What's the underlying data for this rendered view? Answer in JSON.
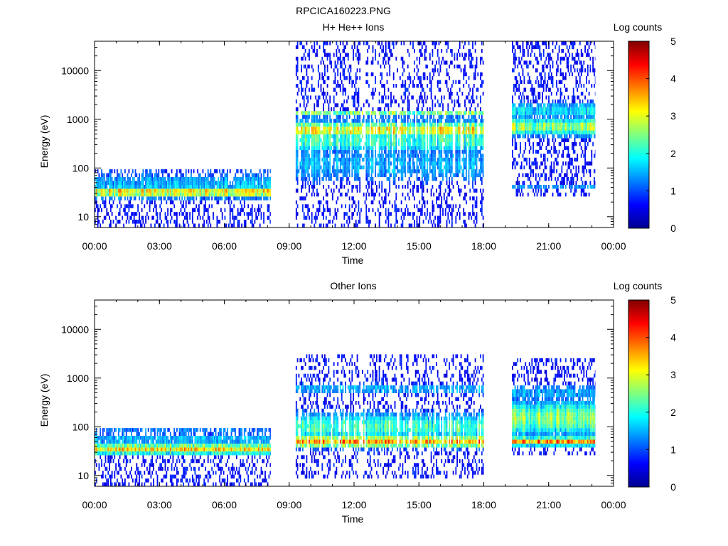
{
  "figure": {
    "filename": "RPCICA160223.PNG"
  },
  "chart_data": [
    {
      "type": "heatmap",
      "title": "H+ He++ Ions",
      "xlabel": "Time",
      "ylabel": "Energy (eV)",
      "x_ticks": [
        "00:00",
        "03:00",
        "06:00",
        "09:00",
        "12:00",
        "15:00",
        "18:00",
        "21:00",
        "00:00"
      ],
      "x_range_hours": [
        0,
        24
      ],
      "y_scale": "log",
      "y_ticks": [
        10,
        100,
        1000,
        10000
      ],
      "y_tick_labels": [
        "10",
        "100",
        "1000",
        "10000"
      ],
      "y_range": [
        6,
        40000
      ],
      "colorbar": {
        "label": "Log counts",
        "ticks": [
          "0",
          "1",
          "2",
          "3",
          "4",
          "5"
        ],
        "range": [
          0,
          5
        ],
        "colormap": "jet"
      },
      "data_intervals": [
        {
          "start_h": 0.0,
          "end_h": 8.15,
          "e_low": 6,
          "e_high": 95,
          "bands": [
            {
              "e_center": 32,
              "e_width_log": 0.09,
              "level": 3.3
            },
            {
              "e_center": 52,
              "e_width_log": 0.12,
              "level": 1.5
            },
            {
              "e_center": 75,
              "e_width_log": 0.1,
              "level": 1.0
            }
          ]
        },
        {
          "start_h": 9.3,
          "end_h": 18.0,
          "e_low": 6,
          "e_high": 40000,
          "bands": [
            {
              "e_center": 600,
              "e_width_log": 0.14,
              "level": 3.2
            },
            {
              "e_center": 1300,
              "e_width_log": 0.05,
              "level": 2.6
            },
            {
              "e_center": 350,
              "e_width_log": 0.2,
              "level": 2.2
            },
            {
              "e_center": 120,
              "e_width_log": 0.35,
              "level": 1.5
            }
          ]
        },
        {
          "start_h": 19.3,
          "end_h": 23.15,
          "e_low": 25,
          "e_high": 40000,
          "bands": [
            {
              "e_center": 700,
              "e_width_log": 0.15,
              "level": 2.7
            },
            {
              "e_center": 1500,
              "e_width_log": 0.15,
              "level": 1.8
            },
            {
              "e_center": 40,
              "e_width_log": 0.06,
              "level": 1.3
            }
          ]
        }
      ]
    },
    {
      "type": "heatmap",
      "title": "Other Ions",
      "xlabel": "Time",
      "ylabel": "Energy (eV)",
      "x_ticks": [
        "00:00",
        "03:00",
        "06:00",
        "09:00",
        "12:00",
        "15:00",
        "18:00",
        "21:00",
        "00:00"
      ],
      "x_range_hours": [
        0,
        24
      ],
      "y_scale": "log",
      "y_ticks": [
        10,
        100,
        1000,
        10000
      ],
      "y_tick_labels": [
        "10",
        "100",
        "1000",
        "10000"
      ],
      "y_range": [
        6,
        40000
      ],
      "colorbar": {
        "label": "Log counts",
        "ticks": [
          "0",
          "1",
          "2",
          "3",
          "4",
          "5"
        ],
        "range": [
          0,
          5
        ],
        "colormap": "jet"
      },
      "data_intervals": [
        {
          "start_h": 0.0,
          "end_h": 8.15,
          "e_low": 6,
          "e_high": 95,
          "bands": [
            {
              "e_center": 35,
              "e_width_log": 0.09,
              "level": 3.3
            },
            {
              "e_center": 55,
              "e_width_log": 0.1,
              "level": 1.6
            },
            {
              "e_center": 80,
              "e_width_log": 0.08,
              "level": 1.2
            }
          ]
        },
        {
          "start_h": 9.3,
          "end_h": 18.0,
          "e_low": 8,
          "e_high": 3000,
          "bands": [
            {
              "e_center": 50,
              "e_width_log": 0.1,
              "level": 3.6
            },
            {
              "e_center": 100,
              "e_width_log": 0.25,
              "level": 2.2
            },
            {
              "e_center": 600,
              "e_width_log": 0.1,
              "level": 1.5
            }
          ]
        },
        {
          "start_h": 19.3,
          "end_h": 23.15,
          "e_low": 25,
          "e_high": 2500,
          "bands": [
            {
              "e_center": 50,
              "e_width_log": 0.07,
              "level": 3.7
            },
            {
              "e_center": 150,
              "e_width_log": 0.3,
              "level": 2.6
            },
            {
              "e_center": 500,
              "e_width_log": 0.15,
              "level": 1.5
            }
          ]
        }
      ]
    }
  ]
}
